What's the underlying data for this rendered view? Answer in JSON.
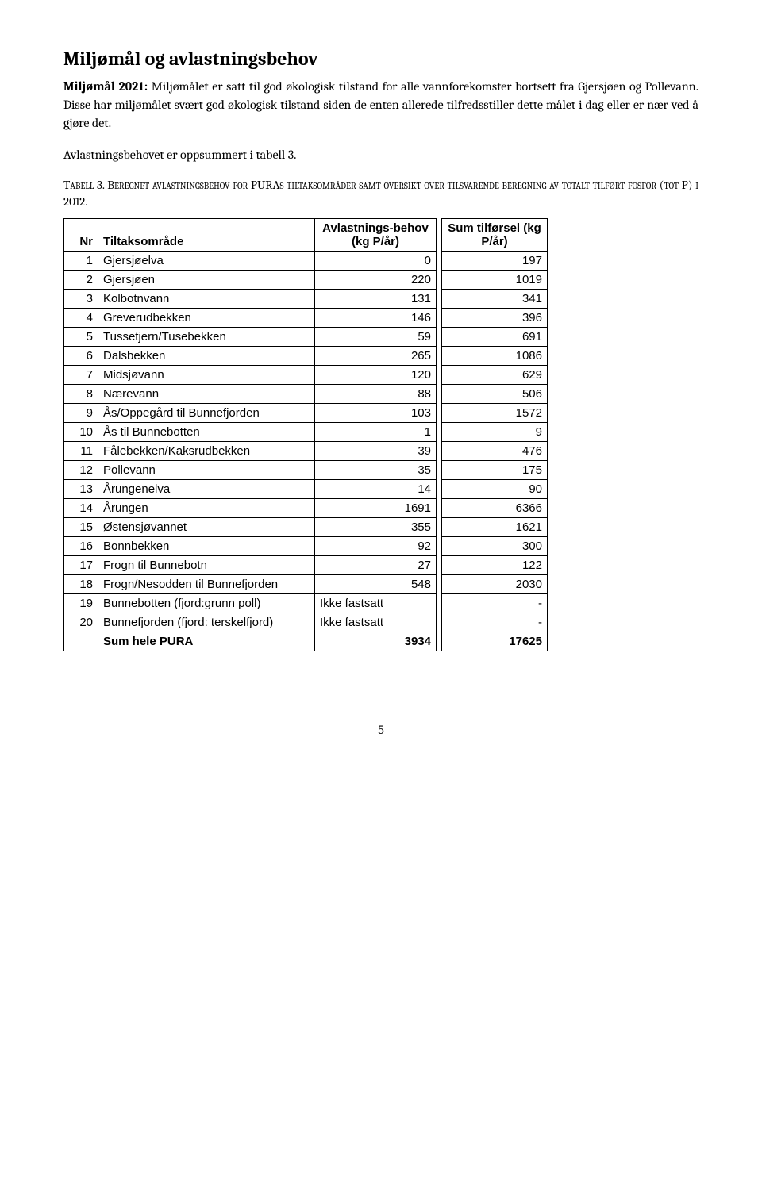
{
  "heading": "Miljømål og avlastningsbehov",
  "paragraph1_prefix": "Miljømål 2021:",
  "paragraph1_rest": " Miljømålet er satt til god økologisk tilstand for alle vannforekomster bortsett fra Gjersjøen og Pollevann. Disse har miljømålet svært god økologisk tilstand siden de enten allerede tilfredsstiller dette målet i dag eller er nær ved å gjøre det.",
  "paragraph2": "Avlastningsbehovet er oppsummert i tabell 3.",
  "caption_label": "Tabell 3.",
  "caption_rest": " Beregnet avlastningsbehov for PURAs tiltaksområder samt oversikt over tilsvarende beregning av totalt tilført fosfor (tot P) i 2012.",
  "table": {
    "headers": {
      "nr": "Nr",
      "name": "Tiltaksområde",
      "val": "Avlastnings-behov (kg P/år)",
      "sum": "Sum tilførsel (kg P/år)"
    },
    "rows": [
      {
        "nr": "1",
        "name": "Gjersjøelva",
        "val": "0",
        "sum": "197"
      },
      {
        "nr": "2",
        "name": "Gjersjøen",
        "val": "220",
        "sum": "1019"
      },
      {
        "nr": "3",
        "name": "Kolbotnvann",
        "val": "131",
        "sum": "341"
      },
      {
        "nr": "4",
        "name": "Greverudbekken",
        "val": "146",
        "sum": "396"
      },
      {
        "nr": "5",
        "name": "Tussetjern/Tusebekken",
        "val": "59",
        "sum": "691"
      },
      {
        "nr": "6",
        "name": "Dalsbekken",
        "val": "265",
        "sum": "1086"
      },
      {
        "nr": "7",
        "name": "Midsjøvann",
        "val": "120",
        "sum": "629"
      },
      {
        "nr": "8",
        "name": "Nærevann",
        "val": "88",
        "sum": "506"
      },
      {
        "nr": "9",
        "name": "Ås/Oppegård til Bunnefjorden",
        "val": "103",
        "sum": "1572"
      },
      {
        "nr": "10",
        "name": "Ås til Bunnebotten",
        "val": "1",
        "sum": "9"
      },
      {
        "nr": "11",
        "name": "Fålebekken/Kaksrudbekken",
        "val": "39",
        "sum": "476"
      },
      {
        "nr": "12",
        "name": "Pollevann",
        "val": "35",
        "sum": "175"
      },
      {
        "nr": "13",
        "name": "Årungenelva",
        "val": "14",
        "sum": "90"
      },
      {
        "nr": "14",
        "name": "Årungen",
        "val": "1691",
        "sum": "6366"
      },
      {
        "nr": "15",
        "name": "Østensjøvannet",
        "val": "355",
        "sum": "1621"
      },
      {
        "nr": "16",
        "name": "Bonnbekken",
        "val": "92",
        "sum": "300"
      },
      {
        "nr": "17",
        "name": "Frogn til Bunnebotn",
        "val": "27",
        "sum": "122"
      },
      {
        "nr": "18",
        "name": "Frogn/Nesodden til Bunnefjorden",
        "val": "548",
        "sum": "2030"
      },
      {
        "nr": "19",
        "name": "Bunnebotten (fjord:grunn poll)",
        "val": "Ikke fastsatt",
        "sum": "-"
      },
      {
        "nr": "20",
        "name": "Bunnefjorden (fjord: terskelfjord)",
        "val": "Ikke fastsatt",
        "sum": "-"
      }
    ],
    "sum_row": {
      "nr": "",
      "name": "Sum hele PURA",
      "val": "3934",
      "sum": "17625"
    }
  },
  "page_number": "5"
}
